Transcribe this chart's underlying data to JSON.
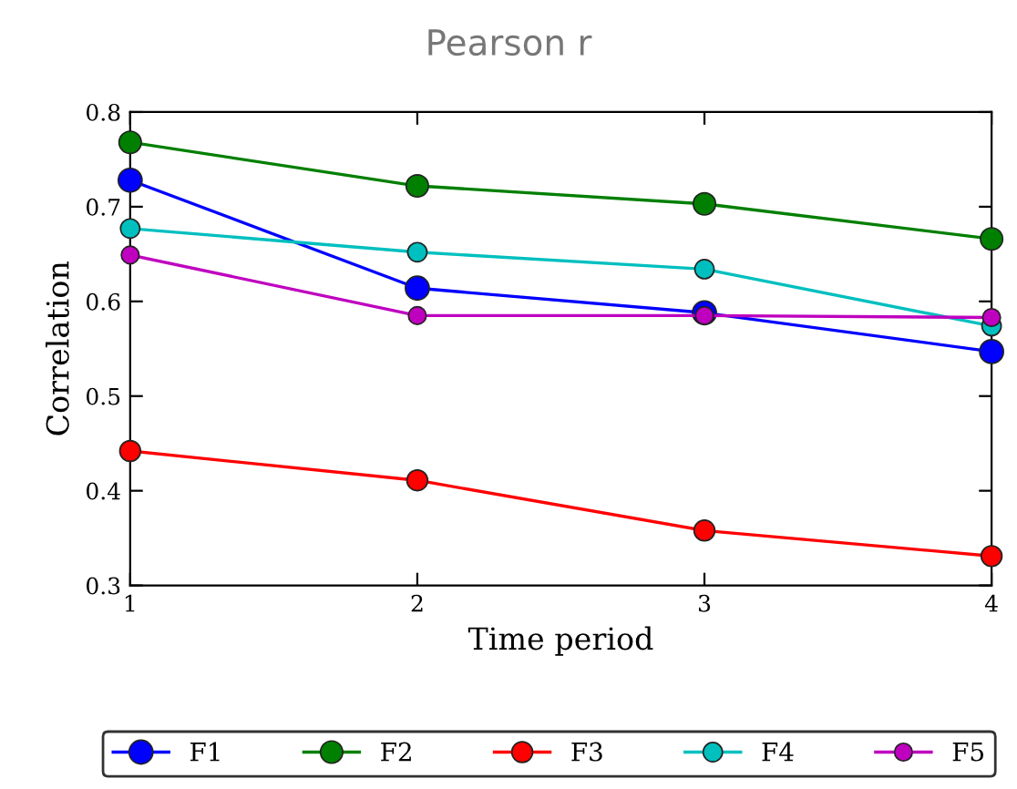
{
  "chart_data": {
    "type": "line",
    "title": "Pearson r",
    "xlabel": "Time period",
    "ylabel": "Correlation",
    "x": [
      1,
      2,
      3,
      4
    ],
    "series": [
      {
        "name": "F1",
        "color": "#0000ff",
        "values": [
          0.728,
          0.614,
          0.588,
          0.547
        ]
      },
      {
        "name": "F2",
        "color": "#007f00",
        "values": [
          0.768,
          0.722,
          0.703,
          0.666
        ]
      },
      {
        "name": "F3",
        "color": "#ff0000",
        "values": [
          0.442,
          0.411,
          0.358,
          0.331
        ]
      },
      {
        "name": "F4",
        "color": "#00bfbf",
        "values": [
          0.677,
          0.652,
          0.634,
          0.574
        ]
      },
      {
        "name": "F5",
        "color": "#bf00bf",
        "values": [
          0.649,
          0.585,
          0.585,
          0.583
        ]
      }
    ],
    "xlim": [
      1,
      4
    ],
    "ylim": [
      0.3,
      0.8
    ],
    "xticks": [
      1,
      2,
      3,
      4
    ],
    "yticks": [
      0.3,
      0.4,
      0.5,
      0.6,
      0.7,
      0.8
    ],
    "grid": false,
    "legend": "bottom",
    "marker": "circle",
    "line_style": "solid"
  }
}
